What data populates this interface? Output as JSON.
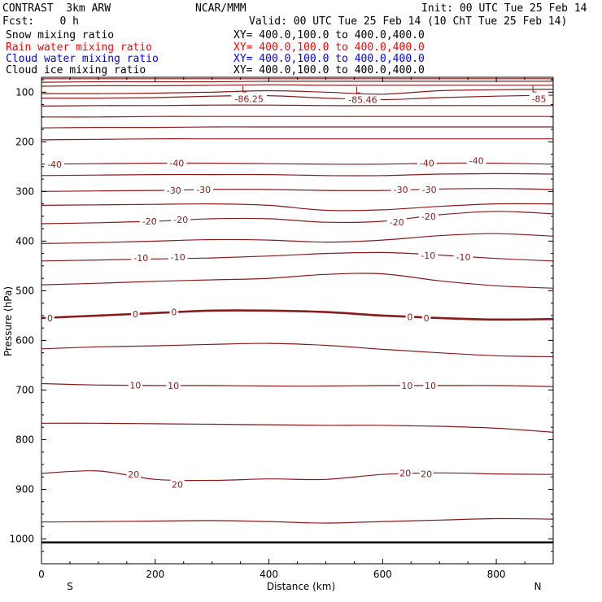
{
  "header": {
    "model": "CONTRAST  3km ARW",
    "center": "NCAR/MMM",
    "init": "Init: 00 UTC Tue 25 Feb 14",
    "fcst": "Fcst:    0 h",
    "valid": "Valid: 00 UTC Tue 25 Feb 14 (10 ChT Tue 25 Feb 14)"
  },
  "legend": [
    {
      "name": "Snow mixing ratio",
      "xy": "XY= 400.0,100.0 to 400.0,400.0",
      "color": "#000000"
    },
    {
      "name": "Rain water mixing ratio",
      "xy": "XY= 400.0,100.0 to 400.0,400.0",
      "color": "#ff0000"
    },
    {
      "name": "Cloud water mixing ratio",
      "xy": "XY= 400.0,100.0 to 400.0,400.0",
      "color": "#0000ff"
    },
    {
      "name": "Cloud ice mixing ratio",
      "xy": "XY= 400.0,100.0 to 400.0,400.0",
      "color": "#000000"
    }
  ],
  "chart_data": {
    "type": "line",
    "title": "",
    "xlabel": "Distance (km)",
    "ylabel": "Pressure (hPa)",
    "xlim": [
      0,
      900
    ],
    "ylim": [
      1050,
      70
    ],
    "x_ticks": [
      "0",
      "200",
      "400",
      "600",
      "800"
    ],
    "y_ticks": [
      "100",
      "200",
      "300",
      "400",
      "500",
      "600",
      "700",
      "800",
      "900",
      "1000"
    ],
    "x_end_labels": {
      "left": "S",
      "right": "N"
    },
    "line_color": "#8b1a1a",
    "ground_pressure": 1007,
    "min_labels": [
      {
        "mark": "L",
        "value": "-86.25",
        "x": 365,
        "p": 110
      },
      {
        "mark": "L",
        "value": "-85.46",
        "x": 565,
        "p": 112
      },
      {
        "mark": "L",
        "value": "-85",
        "x": 875,
        "p": 110
      }
    ],
    "contour_x": [
      0,
      100,
      200,
      300,
      400,
      500,
      600,
      700,
      800,
      900
    ],
    "series": [
      {
        "value": "-85",
        "p": [
          73,
          73,
          73,
          73,
          73,
          73,
          73,
          73,
          73,
          73
        ]
      },
      {
        "value": "-80",
        "p": [
          80,
          79,
          79,
          79,
          78,
          78,
          78,
          78,
          78,
          78
        ]
      },
      {
        "value": "-75",
        "p": [
          88,
          87,
          87,
          86,
          85,
          86,
          86,
          86,
          86,
          86
        ]
      },
      {
        "value": "-70",
        "p": [
          103,
          103,
          102,
          100,
          97,
          100,
          104,
          97,
          95,
          94
        ]
      },
      {
        "value": "-65",
        "p": [
          112,
          112,
          111,
          108,
          107,
          112,
          115,
          111,
          108,
          106
        ]
      },
      {
        "value": "-60",
        "p": [
          128,
          127,
          127,
          126,
          126,
          127,
          127,
          127,
          127,
          127
        ]
      },
      {
        "value": "-55",
        "p": [
          150,
          150,
          149,
          149,
          149,
          149,
          149,
          149,
          149,
          149
        ]
      },
      {
        "value": "-50",
        "p": [
          172,
          171,
          171,
          170,
          170,
          170,
          170,
          170,
          170,
          170
        ]
      },
      {
        "value": "-45",
        "p": [
          196,
          195,
          194,
          194,
          194,
          194,
          194,
          194,
          194,
          194
        ]
      },
      {
        "value": "-40",
        "p": [
          245,
          244,
          243,
          243,
          244,
          245,
          245,
          243,
          243,
          245
        ]
      },
      {
        "value": "-35",
        "p": [
          268,
          267,
          266,
          266,
          266,
          268,
          268,
          265,
          264,
          265
        ]
      },
      {
        "value": "-30",
        "p": [
          300,
          299,
          298,
          296,
          296,
          298,
          298,
          295,
          294,
          296
        ]
      },
      {
        "value": "-25",
        "p": [
          328,
          327,
          326,
          325,
          328,
          338,
          337,
          330,
          325,
          325
        ]
      },
      {
        "value": "-20",
        "p": [
          365,
          363,
          360,
          355,
          355,
          362,
          360,
          347,
          340,
          345
        ]
      },
      {
        "value": "-15",
        "p": [
          405,
          403,
          400,
          397,
          398,
          402,
          398,
          389,
          385,
          390
        ]
      },
      {
        "value": "-10",
        "p": [
          440,
          438,
          436,
          434,
          430,
          425,
          423,
          428,
          435,
          440
        ]
      },
      {
        "value": "-5",
        "p": [
          488,
          485,
          481,
          478,
          475,
          467,
          466,
          480,
          490,
          495
        ]
      },
      {
        "value": "0",
        "p": [
          555,
          550,
          545,
          540,
          540,
          543,
          550,
          555,
          558,
          557
        ],
        "bold": true
      },
      {
        "value": "5",
        "p": [
          617,
          613,
          611,
          608,
          606,
          610,
          618,
          625,
          631,
          633
        ]
      },
      {
        "value": "10",
        "p": [
          687,
          690,
          691,
          691,
          692,
          692,
          691,
          691,
          691,
          693
        ]
      },
      {
        "value": "15",
        "p": [
          767,
          767,
          768,
          769,
          770,
          771,
          771,
          773,
          777,
          785
        ]
      },
      {
        "value": "20",
        "p": [
          868,
          863,
          880,
          882,
          879,
          880,
          870,
          867,
          869,
          870
        ]
      },
      {
        "value": "25",
        "p": [
          966,
          965,
          964,
          963,
          965,
          968,
          965,
          962,
          959,
          960
        ]
      }
    ],
    "labels": [
      {
        "text": "-40",
        "x": 23,
        "p": 245
      },
      {
        "text": "-40",
        "x": 238,
        "p": 243
      },
      {
        "text": "-40",
        "x": 678,
        "p": 243
      },
      {
        "text": "-40",
        "x": 765,
        "p": 238
      },
      {
        "text": "-30",
        "x": 233,
        "p": 298
      },
      {
        "text": "-30",
        "x": 285,
        "p": 296
      },
      {
        "text": "-30",
        "x": 632,
        "p": 296
      },
      {
        "text": "-30",
        "x": 682,
        "p": 296
      },
      {
        "text": "-20",
        "x": 190,
        "p": 360
      },
      {
        "text": "-20",
        "x": 245,
        "p": 357
      },
      {
        "text": "-20",
        "x": 625,
        "p": 362
      },
      {
        "text": "-20",
        "x": 681,
        "p": 350
      },
      {
        "text": "-10",
        "x": 175,
        "p": 434
      },
      {
        "text": "-10",
        "x": 240,
        "p": 432
      },
      {
        "text": "-10",
        "x": 680,
        "p": 429
      },
      {
        "text": "-10",
        "x": 742,
        "p": 432
      },
      {
        "text": "0",
        "x": 15,
        "p": 555
      },
      {
        "text": "0",
        "x": 165,
        "p": 547
      },
      {
        "text": "0",
        "x": 233,
        "p": 543
      },
      {
        "text": "0",
        "x": 648,
        "p": 553
      },
      {
        "text": "0",
        "x": 677,
        "p": 555
      },
      {
        "text": "10",
        "x": 165,
        "p": 690
      },
      {
        "text": "10",
        "x": 232,
        "p": 691
      },
      {
        "text": "10",
        "x": 643,
        "p": 691
      },
      {
        "text": "10",
        "x": 684,
        "p": 691
      },
      {
        "text": "20",
        "x": 162,
        "p": 870
      },
      {
        "text": "20",
        "x": 239,
        "p": 890
      },
      {
        "text": "20",
        "x": 640,
        "p": 867
      },
      {
        "text": "20",
        "x": 677,
        "p": 869
      }
    ]
  }
}
